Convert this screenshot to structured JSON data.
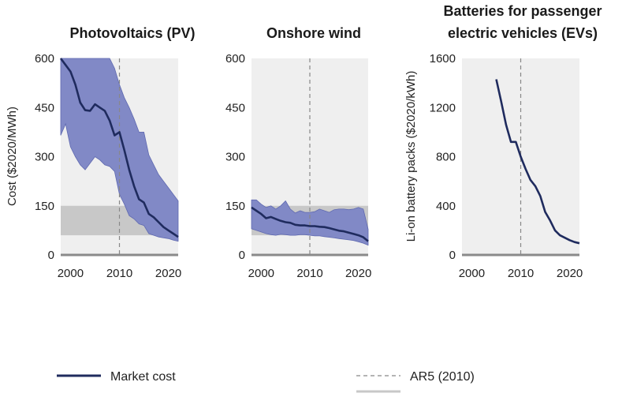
{
  "colors": {
    "line": "#1f2b5e",
    "band": "#8189c6",
    "band_edge": "#5f69b0",
    "plot_bg": "#efefef",
    "grey_band": "#c8c8c8",
    "axis": "#8a8a8a",
    "ar5_line": "#888888"
  },
  "legend": {
    "market_cost": "Market cost",
    "ar5": "AR5 (2010)"
  },
  "chart_data": [
    {
      "type": "line",
      "title": "Photovoltaics (PV)",
      "ylabel": "Cost ($2020/MWh)",
      "xlim": [
        1998,
        2022
      ],
      "ylim": [
        0,
        600
      ],
      "xticks": [
        2000,
        2010,
        2020
      ],
      "yticks": [
        0,
        150,
        300,
        450,
        600
      ],
      "ar5_year": 2010,
      "grey_band": [
        60,
        150
      ],
      "series": [
        {
          "name": "Market cost",
          "x": [
            1998,
            1999,
            2000,
            2001,
            2002,
            2003,
            2004,
            2005,
            2006,
            2007,
            2008,
            2009,
            2010,
            2011,
            2012,
            2013,
            2014,
            2015,
            2016,
            2017,
            2018,
            2019,
            2020,
            2021,
            2022
          ],
          "values": [
            600,
            580,
            560,
            520,
            465,
            442,
            440,
            460,
            450,
            440,
            410,
            365,
            375,
            320,
            260,
            210,
            170,
            160,
            125,
            115,
            100,
            85,
            75,
            65,
            55
          ]
        }
      ],
      "band": {
        "x": [
          1998,
          1999,
          2000,
          2001,
          2002,
          2003,
          2004,
          2005,
          2006,
          2007,
          2008,
          2009,
          2010,
          2011,
          2012,
          2013,
          2014,
          2015,
          2016,
          2017,
          2018,
          2019,
          2020,
          2021,
          2022
        ],
        "low": [
          365,
          400,
          330,
          300,
          275,
          260,
          280,
          300,
          290,
          275,
          270,
          255,
          185,
          155,
          120,
          110,
          95,
          90,
          65,
          60,
          55,
          52,
          50,
          45,
          42
        ],
        "high": [
          600,
          600,
          600,
          600,
          600,
          600,
          600,
          600,
          600,
          600,
          600,
          570,
          520,
          480,
          450,
          415,
          375,
          375,
          305,
          275,
          245,
          225,
          205,
          185,
          165
        ]
      }
    },
    {
      "type": "line",
      "title": "Onshore wind",
      "ylabel": "",
      "xlim": [
        1998,
        2022
      ],
      "ylim": [
        0,
        600
      ],
      "xticks": [
        2000,
        2010,
        2020
      ],
      "yticks": [
        0,
        150,
        300,
        450,
        600
      ],
      "ar5_year": 2010,
      "grey_band": [
        60,
        150
      ],
      "series": [
        {
          "name": "Market cost",
          "x": [
            1998,
            1999,
            2000,
            2001,
            2002,
            2003,
            2004,
            2005,
            2006,
            2007,
            2008,
            2009,
            2010,
            2011,
            2012,
            2013,
            2014,
            2015,
            2016,
            2017,
            2018,
            2019,
            2020,
            2021,
            2022
          ],
          "values": [
            145,
            135,
            125,
            112,
            116,
            110,
            104,
            100,
            98,
            92,
            90,
            90,
            88,
            88,
            86,
            85,
            82,
            78,
            74,
            72,
            68,
            64,
            60,
            54,
            42
          ]
        }
      ],
      "band": {
        "x": [
          1998,
          1999,
          2000,
          2001,
          2002,
          2003,
          2004,
          2005,
          2006,
          2007,
          2008,
          2009,
          2010,
          2011,
          2012,
          2013,
          2014,
          2015,
          2016,
          2017,
          2018,
          2019,
          2020,
          2021,
          2022
        ],
        "low": [
          80,
          75,
          70,
          65,
          62,
          60,
          63,
          62,
          60,
          60,
          62,
          62,
          60,
          58,
          58,
          56,
          54,
          52,
          50,
          48,
          46,
          44,
          40,
          36,
          30
        ],
        "high": [
          168,
          168,
          155,
          145,
          150,
          140,
          150,
          165,
          140,
          128,
          135,
          130,
          130,
          132,
          140,
          135,
          130,
          138,
          140,
          140,
          138,
          140,
          145,
          140,
          78
        ]
      }
    },
    {
      "type": "line",
      "title": "Batteries for passenger electric vehicles (EVs)",
      "ylabel": "Li-on battery packs ($2020/kWh)",
      "xlim": [
        1998,
        2022
      ],
      "ylim": [
        0,
        1600
      ],
      "xticks": [
        2000,
        2010,
        2020
      ],
      "yticks": [
        0,
        400,
        800,
        1200,
        1600
      ],
      "ar5_year": 2010,
      "series": [
        {
          "name": "Market cost",
          "x": [
            2005,
            2006,
            2007,
            2008,
            2009,
            2010,
            2011,
            2012,
            2013,
            2014,
            2015,
            2016,
            2017,
            2018,
            2019,
            2020,
            2021,
            2022
          ],
          "values": [
            1430,
            1250,
            1060,
            920,
            920,
            800,
            700,
            610,
            560,
            480,
            350,
            280,
            200,
            160,
            140,
            120,
            105,
            95
          ]
        }
      ]
    }
  ]
}
